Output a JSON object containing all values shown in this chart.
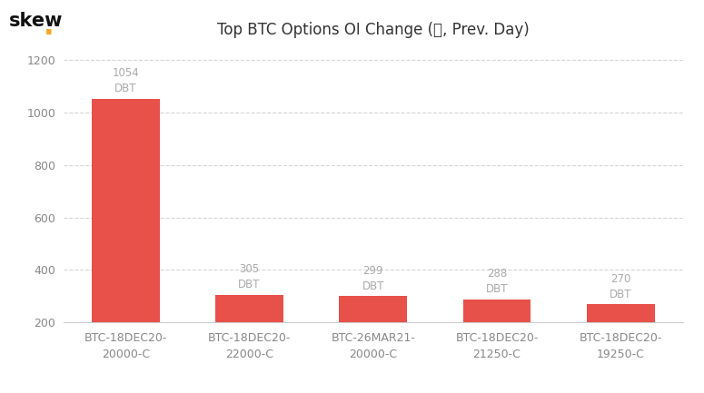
{
  "title": "Top BTC Options OI Change (₿, Prev. Day)",
  "categories": [
    "BTC-18DEC20-\n20000-C",
    "BTC-18DEC20-\n22000-C",
    "BTC-26MAR21-\n20000-C",
    "BTC-18DEC20-\n21250-C",
    "BTC-18DEC20-\n19250-C"
  ],
  "values": [
    1054,
    305,
    299,
    288,
    270
  ],
  "labels": [
    "1054\nDBT",
    "305\nDBT",
    "299\nDBT",
    "288\nDBT",
    "270\nDBT"
  ],
  "bar_color": "#e8504a",
  "background_color": "#ffffff",
  "grid_color": "#cccccc",
  "text_color": "#aaaaaa",
  "title_color": "#333333",
  "axis_color": "#cccccc",
  "tick_color": "#888888",
  "skew_text_color": "#111111",
  "skew_dot_color": "#f5a623",
  "ylim_min": 200,
  "ylim_max": 1250,
  "yticks": [
    200,
    400,
    600,
    800,
    1000,
    1200
  ],
  "title_fontsize": 12,
  "label_fontsize": 8.5,
  "tick_fontsize": 9,
  "bar_width": 0.55
}
